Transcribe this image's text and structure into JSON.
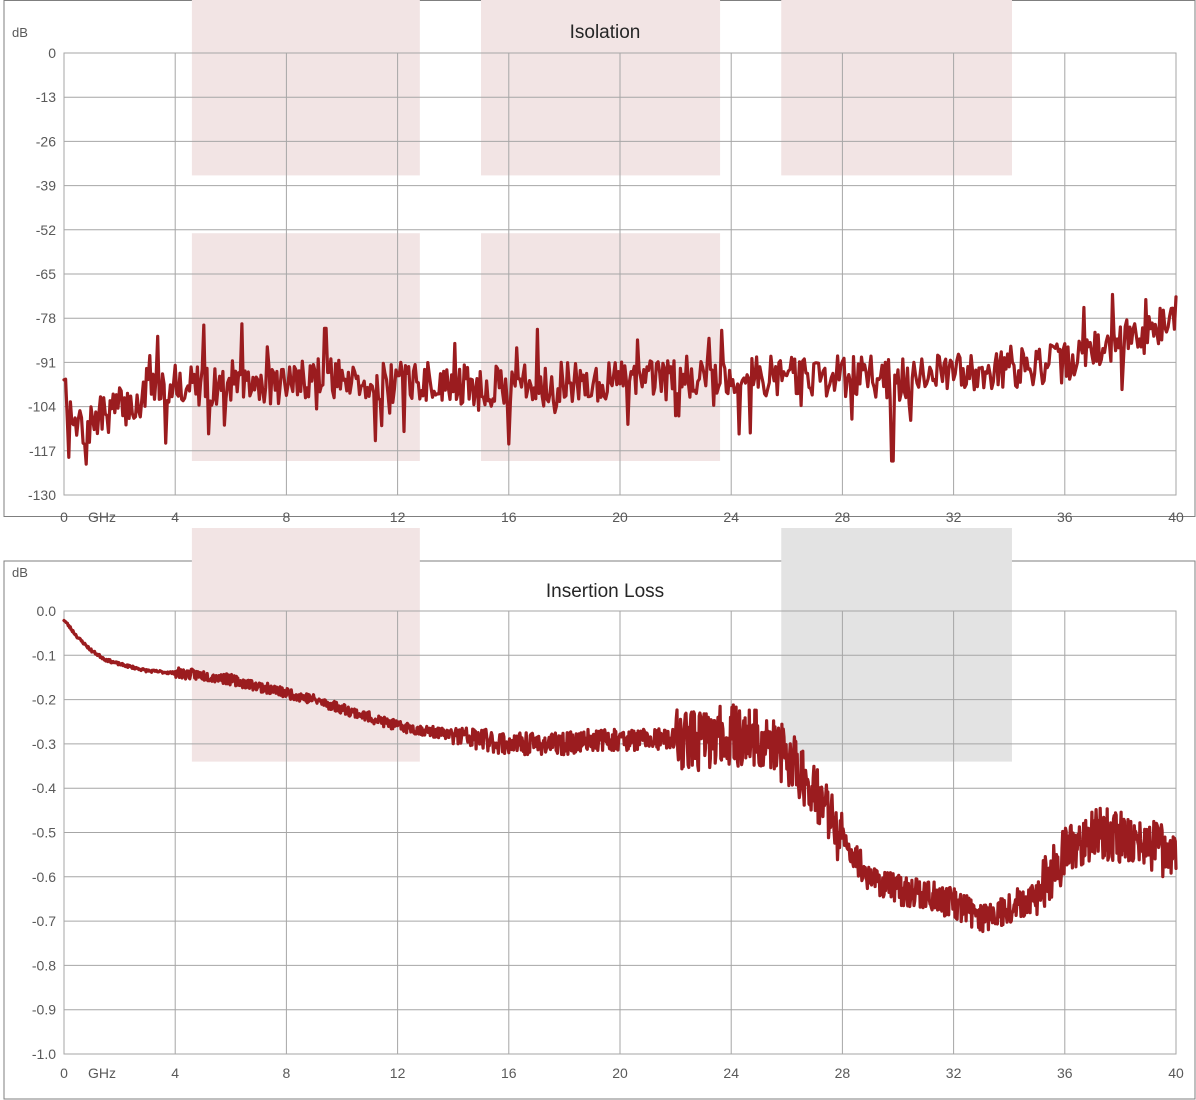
{
  "colors": {
    "line": "#9b1c1f",
    "grid": "#a6a6a6",
    "frame": "#7f7f7f",
    "band_pink": "#f2e4e4",
    "band_gray": "#e3e3e3",
    "axis_text": "#595959"
  },
  "chart_data": [
    {
      "type": "line",
      "title": "Isolation",
      "ylabel": "dB",
      "xunit": "GHz",
      "xlim": [
        0,
        40
      ],
      "ylim": [
        -130,
        0
      ],
      "x_ticks": [
        "0",
        "4",
        "8",
        "12",
        "16",
        "20",
        "24",
        "28",
        "32",
        "36",
        "40"
      ],
      "y_ticks": [
        "0",
        "-13",
        "-26",
        "-39",
        "-52",
        "-65",
        "-78",
        "-91",
        "-104",
        "-117",
        "-130"
      ],
      "grid": true,
      "shaded_regions": [
        {
          "x": [
            4.6,
            12.8
          ],
          "y": [
            -36,
            0
          ],
          "color": "band_pink"
        },
        {
          "x": [
            15.0,
            23.6
          ],
          "y": [
            -36,
            0
          ],
          "color": "band_pink"
        },
        {
          "x": [
            25.8,
            34.1
          ],
          "y": [
            -36,
            0
          ],
          "color": "band_pink"
        },
        {
          "x": [
            4.6,
            12.8
          ],
          "y": [
            -120,
            -53
          ],
          "color": "band_pink"
        },
        {
          "x": [
            15.0,
            23.6
          ],
          "y": [
            -120,
            -53
          ],
          "color": "band_pink"
        }
      ],
      "series": [
        {
          "x": [
            0,
            0.2,
            0.5,
            1,
            1.5,
            2,
            2.5,
            3,
            4,
            5,
            6,
            7,
            8,
            9,
            10,
            11,
            12,
            13,
            14,
            15,
            16,
            17,
            18,
            19,
            20,
            21,
            22,
            23,
            24,
            25,
            26,
            27,
            28,
            29,
            30,
            31,
            32,
            33,
            34,
            35,
            36,
            37,
            38,
            39,
            40
          ],
          "y": [
            -93,
            -108,
            -112,
            -109,
            -106,
            -104,
            -104,
            -100,
            -97,
            -98,
            -98,
            -98,
            -97,
            -95,
            -96,
            -97,
            -97,
            -97,
            -97,
            -98,
            -98,
            -97,
            -97,
            -97,
            -96,
            -96,
            -96,
            -95,
            -96,
            -95,
            -95,
            -95,
            -95,
            -95,
            -97,
            -95,
            -94,
            -93,
            -93,
            -92,
            -91,
            -88,
            -85,
            -82,
            -77
          ],
          "noise": 6,
          "extreme_dips": [
            {
              "x": 29.8,
              "y": -120
            },
            {
              "x": 16.0,
              "y": -115
            },
            {
              "x": 5.2,
              "y": -112
            },
            {
              "x": 9.4,
              "y": -81
            },
            {
              "x": 11.2,
              "y": -114
            }
          ]
        }
      ]
    },
    {
      "type": "line",
      "title": "Insertion Loss",
      "ylabel": "dB",
      "xunit": "GHz",
      "xlim": [
        0,
        40
      ],
      "ylim": [
        -1.0,
        0.0
      ],
      "x_ticks": [
        "0",
        "4",
        "8",
        "12",
        "16",
        "20",
        "24",
        "28",
        "32",
        "36",
        "40"
      ],
      "y_ticks": [
        "0.0",
        "-0.1",
        "-0.2",
        "-0.3",
        "-0.4",
        "-0.5",
        "-0.6",
        "-0.7",
        "-0.8",
        "-0.9",
        "-1.0"
      ],
      "grid": true,
      "shaded_regions": [
        {
          "x": [
            4.6,
            12.8
          ],
          "y": [
            -0.34,
            0.0
          ],
          "color": "band_pink"
        },
        {
          "x": [
            25.8,
            34.1
          ],
          "y": [
            -0.34,
            0.0
          ],
          "color": "band_gray"
        }
      ],
      "series": [
        {
          "x": [
            0,
            0.5,
            1,
            1.5,
            2,
            3,
            4,
            5,
            6,
            7,
            8,
            9,
            10,
            11,
            12,
            13,
            14,
            15,
            16,
            17,
            18,
            19,
            20,
            21,
            22,
            23,
            24,
            25,
            26,
            27,
            28,
            29,
            30,
            31,
            32,
            33,
            34,
            35,
            36,
            37,
            38,
            39,
            40
          ],
          "y": [
            -0.02,
            -0.06,
            -0.09,
            -0.11,
            -0.12,
            -0.135,
            -0.14,
            -0.145,
            -0.155,
            -0.17,
            -0.185,
            -0.2,
            -0.22,
            -0.24,
            -0.26,
            -0.27,
            -0.28,
            -0.29,
            -0.3,
            -0.3,
            -0.3,
            -0.29,
            -0.29,
            -0.29,
            -0.29,
            -0.29,
            -0.28,
            -0.29,
            -0.33,
            -0.4,
            -0.52,
            -0.6,
            -0.63,
            -0.64,
            -0.66,
            -0.69,
            -0.67,
            -0.64,
            -0.55,
            -0.5,
            -0.51,
            -0.53,
            -0.55
          ],
          "noise_profile": [
            {
              "x": [
                0,
                4
              ],
              "amp": 0.003
            },
            {
              "x": [
                4,
                14
              ],
              "amp": 0.012
            },
            {
              "x": [
                14,
                22
              ],
              "amp": 0.025
            },
            {
              "x": [
                22,
                28
              ],
              "amp": 0.07
            },
            {
              "x": [
                28,
                35
              ],
              "amp": 0.035
            },
            {
              "x": [
                35,
                40
              ],
              "amp": 0.06
            }
          ]
        }
      ]
    }
  ]
}
